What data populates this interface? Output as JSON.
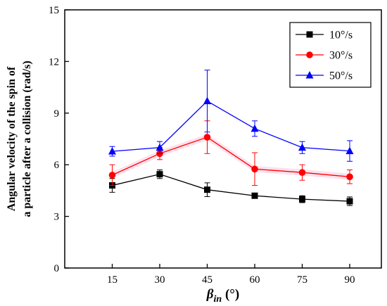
{
  "chart_data": {
    "type": "line",
    "x": [
      15,
      30,
      45,
      60,
      75,
      90
    ],
    "xlabel": {
      "main": "β",
      "sub": "in",
      "unit": " (°)"
    },
    "ylabel": [
      "Angular velocity of the spin of",
      "a particle after a collision (rad/s)"
    ],
    "xlim": [
      0,
      100
    ],
    "ylim": [
      0,
      15
    ],
    "xticks": [
      15,
      30,
      45,
      60,
      75,
      90
    ],
    "yticks": [
      0,
      3,
      6,
      9,
      12,
      15
    ],
    "grid": false,
    "legend_position": "top-right",
    "series": [
      {
        "name": "10°/s",
        "color": "#000000",
        "marker": "square",
        "values": [
          4.8,
          5.45,
          4.55,
          4.2,
          4.0,
          3.88
        ],
        "errors": [
          0.4,
          0.25,
          0.4,
          0.12,
          0.2,
          0.25
        ]
      },
      {
        "name": "30°/s",
        "color": "#ff0000",
        "marker": "circle",
        "values": [
          5.4,
          6.65,
          7.6,
          5.75,
          5.55,
          5.3
        ],
        "errors": [
          0.6,
          0.35,
          0.95,
          0.95,
          0.45,
          0.4
        ]
      },
      {
        "name": "50°/s",
        "color": "#0000ff",
        "marker": "triangle",
        "values": [
          6.78,
          7.0,
          9.7,
          8.1,
          7.0,
          6.8
        ],
        "errors": [
          0.28,
          0.35,
          1.8,
          0.45,
          0.35,
          0.6
        ]
      }
    ]
  }
}
